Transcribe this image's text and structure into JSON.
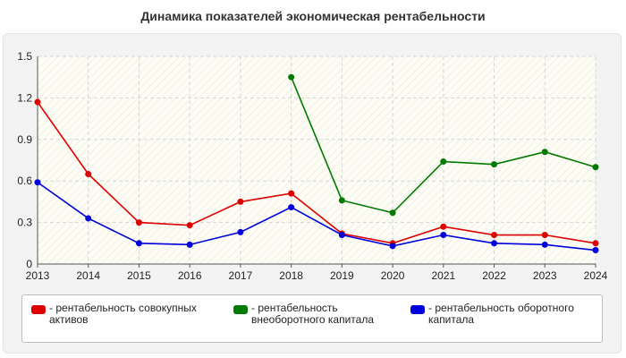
{
  "title": "Динамика показателей экономическая рентабельности",
  "colors": {
    "red": "#dd0000",
    "green": "#007a00",
    "blue": "#0000dd"
  },
  "chart_data": {
    "type": "line",
    "title": "Динамика показателей экономическая рентабельности",
    "xlabel": "",
    "ylabel": "",
    "x": [
      "2013",
      "2014",
      "2015",
      "2016",
      "2017",
      "2018",
      "2019",
      "2020",
      "2021",
      "2022",
      "2023",
      "2024"
    ],
    "yticks": [
      "0",
      "0.3",
      "0.6",
      "0.9",
      "1.2",
      "1.5"
    ],
    "ylim": [
      0,
      1.5
    ],
    "grid": true,
    "legend": "bottom",
    "series": [
      {
        "name": "рентабельность совокупных активов",
        "color": "#dd0000",
        "values": [
          1.17,
          0.65,
          0.3,
          0.28,
          0.45,
          0.51,
          0.22,
          0.15,
          0.27,
          0.21,
          0.21,
          0.15
        ]
      },
      {
        "name": "рентабельность внеоборотного капитала",
        "color": "#007a00",
        "values": [
          null,
          null,
          null,
          null,
          null,
          1.35,
          0.46,
          0.37,
          0.74,
          0.72,
          0.81,
          0.7
        ]
      },
      {
        "name": "рентабельность оборотного капитала",
        "color": "#0000dd",
        "values": [
          0.59,
          0.33,
          0.15,
          0.14,
          0.23,
          0.41,
          0.21,
          0.13,
          0.21,
          0.15,
          0.14,
          0.1
        ]
      }
    ]
  }
}
